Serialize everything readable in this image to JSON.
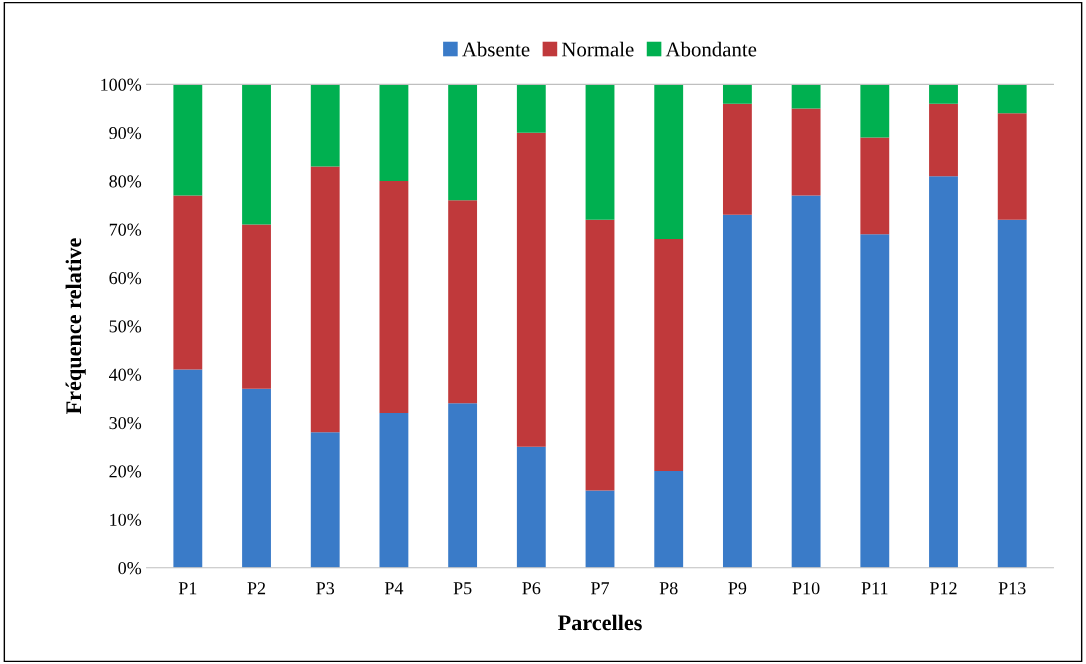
{
  "chart_data": {
    "type": "bar",
    "stacked": true,
    "xlabel": "Parcelles",
    "ylabel": "Fréquence relative",
    "categories": [
      "P1",
      "P2",
      "P3",
      "P4",
      "P5",
      "P6",
      "P7",
      "P8",
      "P9",
      "P10",
      "P11",
      "P12",
      "P13"
    ],
    "series": [
      {
        "name": "Absente",
        "color": "#3a7bc8",
        "values": [
          41,
          37,
          28,
          32,
          34,
          25,
          16,
          20,
          73,
          77,
          69,
          81,
          72
        ]
      },
      {
        "name": "Normale",
        "color": "#c0393b",
        "values": [
          36,
          34,
          55,
          48,
          42,
          65,
          56,
          48,
          23,
          18,
          20,
          15,
          22
        ]
      },
      {
        "name": "Abondante",
        "color": "#00b050",
        "values": [
          23,
          29,
          17,
          20,
          24,
          10,
          28,
          32,
          4,
          5,
          11,
          4,
          6
        ]
      }
    ],
    "ylim": [
      0,
      100
    ],
    "yticks": [
      {
        "value": 0,
        "label": "0%"
      },
      {
        "value": 10,
        "label": "10%"
      },
      {
        "value": 20,
        "label": "20%"
      },
      {
        "value": 30,
        "label": "30%"
      },
      {
        "value": 40,
        "label": "40%"
      },
      {
        "value": 50,
        "label": "50%"
      },
      {
        "value": 60,
        "label": "60%"
      },
      {
        "value": 70,
        "label": "70%"
      },
      {
        "value": 80,
        "label": "80%"
      },
      {
        "value": 90,
        "label": "90%"
      },
      {
        "value": 100,
        "label": "100%"
      }
    ],
    "grid": false,
    "legend": "top"
  }
}
